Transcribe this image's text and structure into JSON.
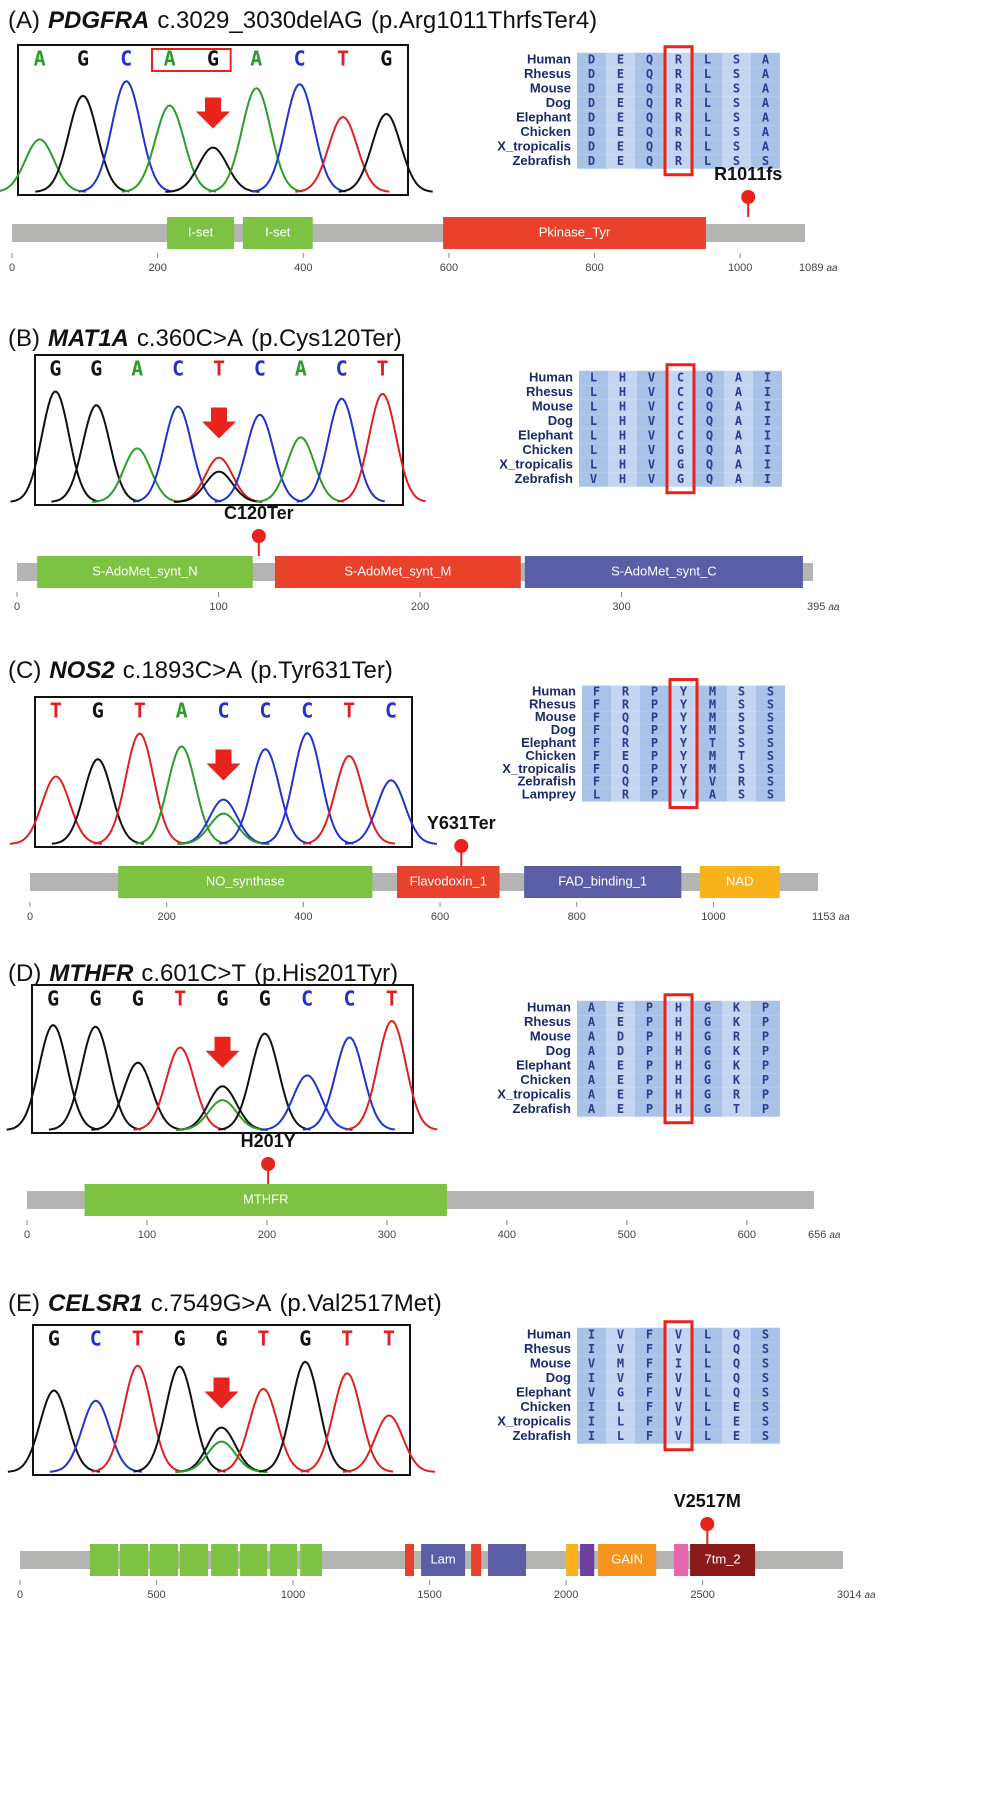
{
  "panels": [
    {
      "label": "(A)",
      "gene": "PDGFRA",
      "variant": "c.3029_3030delAG",
      "protein": "(p.Arg1011ThrfsTer4)",
      "chromatogram": {
        "bases": [
          "A",
          "G",
          "C",
          "A",
          "G",
          "A",
          "C",
          "T",
          "G"
        ],
        "arrow_index": 4,
        "boxed_bases": [
          3,
          4
        ]
      },
      "alignment": {
        "species": [
          "Human",
          "Rhesus",
          "Mouse",
          "Dog",
          "Elephant",
          "Chicken",
          "X_tropicalis",
          "Zebrafish"
        ],
        "residues": [
          [
            "D",
            "E",
            "Q",
            "R",
            "L",
            "S",
            "A"
          ],
          [
            "D",
            "E",
            "Q",
            "R",
            "L",
            "S",
            "A"
          ],
          [
            "D",
            "E",
            "Q",
            "R",
            "L",
            "S",
            "A"
          ],
          [
            "D",
            "E",
            "Q",
            "R",
            "L",
            "S",
            "A"
          ],
          [
            "D",
            "E",
            "Q",
            "R",
            "L",
            "S",
            "A"
          ],
          [
            "D",
            "E",
            "Q",
            "R",
            "L",
            "S",
            "A"
          ],
          [
            "D",
            "E",
            "Q",
            "R",
            "L",
            "S",
            "A"
          ],
          [
            "D",
            "E",
            "Q",
            "R",
            "L",
            "S",
            "S"
          ]
        ],
        "highlight_column": 3
      },
      "track": {
        "length": 1089,
        "unit": "aa",
        "ticks": [
          0,
          200,
          400,
          600,
          800,
          1000
        ],
        "domains": [
          {
            "name": "I-set",
            "start": 213,
            "end": 305,
            "color": "#7dc242"
          },
          {
            "name": "I-set",
            "start": 317,
            "end": 413,
            "color": "#7dc242"
          },
          {
            "name": "Pkinase_Tyr",
            "start": 592,
            "end": 953,
            "color": "#e8412c"
          }
        ],
        "mutation": {
          "label": "R1011fs",
          "position": 1011
        }
      }
    },
    {
      "label": "(B)",
      "gene": "MAT1A",
      "variant": "c.360C>A",
      "protein": "(p.Cys120Ter)",
      "chromatogram": {
        "bases": [
          "G",
          "G",
          "A",
          "C",
          "T",
          "C",
          "A",
          "C",
          "T"
        ],
        "arrow_index": 4,
        "secondary_color": "#111111"
      },
      "alignment": {
        "species": [
          "Human",
          "Rhesus",
          "Mouse",
          "Dog",
          "Elephant",
          "Chicken",
          "X_tropicalis",
          "Zebrafish"
        ],
        "residues": [
          [
            "L",
            "H",
            "V",
            "C",
            "Q",
            "A",
            "I"
          ],
          [
            "L",
            "H",
            "V",
            "C",
            "Q",
            "A",
            "I"
          ],
          [
            "L",
            "H",
            "V",
            "C",
            "Q",
            "A",
            "I"
          ],
          [
            "L",
            "H",
            "V",
            "C",
            "Q",
            "A",
            "I"
          ],
          [
            "L",
            "H",
            "V",
            "C",
            "Q",
            "A",
            "I"
          ],
          [
            "L",
            "H",
            "V",
            "G",
            "Q",
            "A",
            "I"
          ],
          [
            "L",
            "H",
            "V",
            "G",
            "Q",
            "A",
            "I"
          ],
          [
            "V",
            "H",
            "V",
            "G",
            "Q",
            "A",
            "I"
          ]
        ],
        "highlight_column": 3
      },
      "track": {
        "length": 395,
        "unit": "aa",
        "ticks": [
          0,
          100,
          200,
          300
        ],
        "domains": [
          {
            "name": "S-AdoMet_synt_N",
            "start": 10,
            "end": 117,
            "color": "#7dc242"
          },
          {
            "name": "S-AdoMet_synt_M",
            "start": 128,
            "end": 250,
            "color": "#e8412c"
          },
          {
            "name": "S-AdoMet_synt_C",
            "start": 252,
            "end": 390,
            "color": "#5b5ea6"
          }
        ],
        "mutation": {
          "label": "C120Ter",
          "position": 120
        }
      }
    },
    {
      "label": "(C)",
      "gene": "NOS2",
      "variant": "c.1893C>A",
      "protein": "(p.Tyr631Ter)",
      "chromatogram": {
        "bases": [
          "T",
          "G",
          "T",
          "A",
          "C",
          "C",
          "C",
          "T",
          "C"
        ],
        "arrow_index": 4,
        "secondary_color": "#2a9d2a"
      },
      "alignment": {
        "species": [
          "Human",
          "Rhesus",
          "Mouse",
          "Dog",
          "Elephant",
          "Chicken",
          "X_tropicalis",
          "Zebrafish",
          "Lamprey"
        ],
        "residues": [
          [
            "F",
            "R",
            "P",
            "Y",
            "M",
            "S",
            "S"
          ],
          [
            "F",
            "R",
            "P",
            "Y",
            "M",
            "S",
            "S"
          ],
          [
            "F",
            "Q",
            "P",
            "Y",
            "M",
            "S",
            "S"
          ],
          [
            "F",
            "Q",
            "P",
            "Y",
            "M",
            "S",
            "S"
          ],
          [
            "F",
            "R",
            "P",
            "Y",
            "T",
            "S",
            "S"
          ],
          [
            "F",
            "E",
            "P",
            "Y",
            "M",
            "T",
            "S"
          ],
          [
            "F",
            "Q",
            "P",
            "Y",
            "M",
            "S",
            "S"
          ],
          [
            "F",
            "Q",
            "P",
            "Y",
            "V",
            "R",
            "S"
          ],
          [
            "L",
            "R",
            "P",
            "Y",
            "A",
            "S",
            "S"
          ]
        ],
        "highlight_column": 3
      },
      "track": {
        "length": 1153,
        "unit": "aa",
        "ticks": [
          0,
          200,
          400,
          600,
          800,
          1000
        ],
        "domains": [
          {
            "name": "NO_synthase",
            "start": 129,
            "end": 501,
            "color": "#7dc242"
          },
          {
            "name": "Flavodoxin_1",
            "start": 537,
            "end": 687,
            "color": "#e8412c"
          },
          {
            "name": "FAD_binding_1",
            "start": 723,
            "end": 953,
            "color": "#5b5ea6"
          },
          {
            "name": "NAD",
            "start": 980,
            "end": 1097,
            "color": "#f9b21c"
          }
        ],
        "mutation": {
          "label": "Y631Ter",
          "position": 631
        }
      }
    },
    {
      "label": "(D)",
      "gene": "MTHFR",
      "variant": "c.601C>T",
      "protein": "(p.His201Tyr)",
      "chromatogram": {
        "bases": [
          "G",
          "G",
          "G",
          "T",
          "G",
          "G",
          "C",
          "C",
          "T"
        ],
        "arrow_index": 4,
        "secondary_color": "#2a9d2a"
      },
      "alignment": {
        "species": [
          "Human",
          "Rhesus",
          "Mouse",
          "Dog",
          "Elephant",
          "Chicken",
          "X_tropicalis",
          "Zebrafish"
        ],
        "residues": [
          [
            "A",
            "E",
            "P",
            "H",
            "G",
            "K",
            "P"
          ],
          [
            "A",
            "E",
            "P",
            "H",
            "G",
            "K",
            "P"
          ],
          [
            "A",
            "D",
            "P",
            "H",
            "G",
            "R",
            "P"
          ],
          [
            "A",
            "D",
            "P",
            "H",
            "G",
            "K",
            "P"
          ],
          [
            "A",
            "E",
            "P",
            "H",
            "G",
            "K",
            "P"
          ],
          [
            "A",
            "E",
            "P",
            "H",
            "G",
            "K",
            "P"
          ],
          [
            "A",
            "E",
            "P",
            "H",
            "G",
            "R",
            "P"
          ],
          [
            "A",
            "E",
            "P",
            "H",
            "G",
            "T",
            "P"
          ]
        ],
        "highlight_column": 3
      },
      "track": {
        "length": 656,
        "unit": "aa",
        "ticks": [
          0,
          100,
          200,
          300,
          400,
          500,
          600
        ],
        "domains": [
          {
            "name": "MTHFR",
            "start": 48,
            "end": 350,
            "color": "#7dc242"
          }
        ],
        "mutation": {
          "label": "H201Y",
          "position": 201
        }
      }
    },
    {
      "label": "(E)",
      "gene": "CELSR1",
      "variant": "c.7549G>A",
      "protein": "(p.Val2517Met)",
      "chromatogram": {
        "bases": [
          "G",
          "C",
          "T",
          "G",
          "G",
          "T",
          "G",
          "T",
          "T"
        ],
        "arrow_index": 4,
        "secondary_color": "#2a9d2a"
      },
      "alignment": {
        "species": [
          "Human",
          "Rhesus",
          "Mouse",
          "Dog",
          "Elephant",
          "Chicken",
          "X_tropicalis",
          "Zebrafish"
        ],
        "residues": [
          [
            "I",
            "V",
            "F",
            "V",
            "L",
            "Q",
            "S"
          ],
          [
            "I",
            "V",
            "F",
            "V",
            "L",
            "Q",
            "S"
          ],
          [
            "V",
            "M",
            "F",
            "I",
            "L",
            "Q",
            "S"
          ],
          [
            "I",
            "V",
            "F",
            "V",
            "L",
            "Q",
            "S"
          ],
          [
            "V",
            "G",
            "F",
            "V",
            "L",
            "Q",
            "S"
          ],
          [
            "I",
            "L",
            "F",
            "V",
            "L",
            "E",
            "S"
          ],
          [
            "I",
            "L",
            "F",
            "V",
            "L",
            "E",
            "S"
          ],
          [
            "I",
            "L",
            "F",
            "V",
            "L",
            "E",
            "S"
          ]
        ],
        "highlight_column": 3
      },
      "track": {
        "length": 3014,
        "unit": "aa",
        "ticks": [
          0,
          500,
          1000,
          1500,
          2000,
          2500
        ],
        "domains": [
          {
            "name": null,
            "start": 256,
            "end": 359,
            "color": "#7dc242"
          },
          {
            "name": null,
            "start": 366,
            "end": 469,
            "color": "#7dc242"
          },
          {
            "name": null,
            "start": 476,
            "end": 579,
            "color": "#7dc242"
          },
          {
            "name": null,
            "start": 586,
            "end": 689,
            "color": "#7dc242"
          },
          {
            "name": null,
            "start": 700,
            "end": 798,
            "color": "#7dc242"
          },
          {
            "name": null,
            "start": 806,
            "end": 905,
            "color": "#7dc242"
          },
          {
            "name": null,
            "start": 916,
            "end": 1015,
            "color": "#7dc242"
          },
          {
            "name": null,
            "start": 1026,
            "end": 1106,
            "color": "#7dc242"
          },
          {
            "name": null,
            "start": 1410,
            "end": 1443,
            "color": "#e8412c"
          },
          {
            "name": "Lam",
            "start": 1469,
            "end": 1630,
            "color": "#5b5ea6"
          },
          {
            "name": null,
            "start": 1652,
            "end": 1689,
            "color": "#e8412c"
          },
          {
            "name": null,
            "start": 1714,
            "end": 1853,
            "color": "#5b5ea6"
          },
          {
            "name": null,
            "start": 2000,
            "end": 2044,
            "color": "#f9b21c"
          },
          {
            "name": null,
            "start": 2051,
            "end": 2103,
            "color": "#6a3fa0"
          },
          {
            "name": "GAIN",
            "start": 2117,
            "end": 2330,
            "color": "#f7941d"
          },
          {
            "name": null,
            "start": 2395,
            "end": 2447,
            "color": "#e866b0"
          },
          {
            "name": "7tm_2",
            "start": 2454,
            "end": 2692,
            "color": "#8b1a1a"
          }
        ],
        "mutation": {
          "label": "V2517M",
          "position": 2517
        }
      }
    }
  ]
}
